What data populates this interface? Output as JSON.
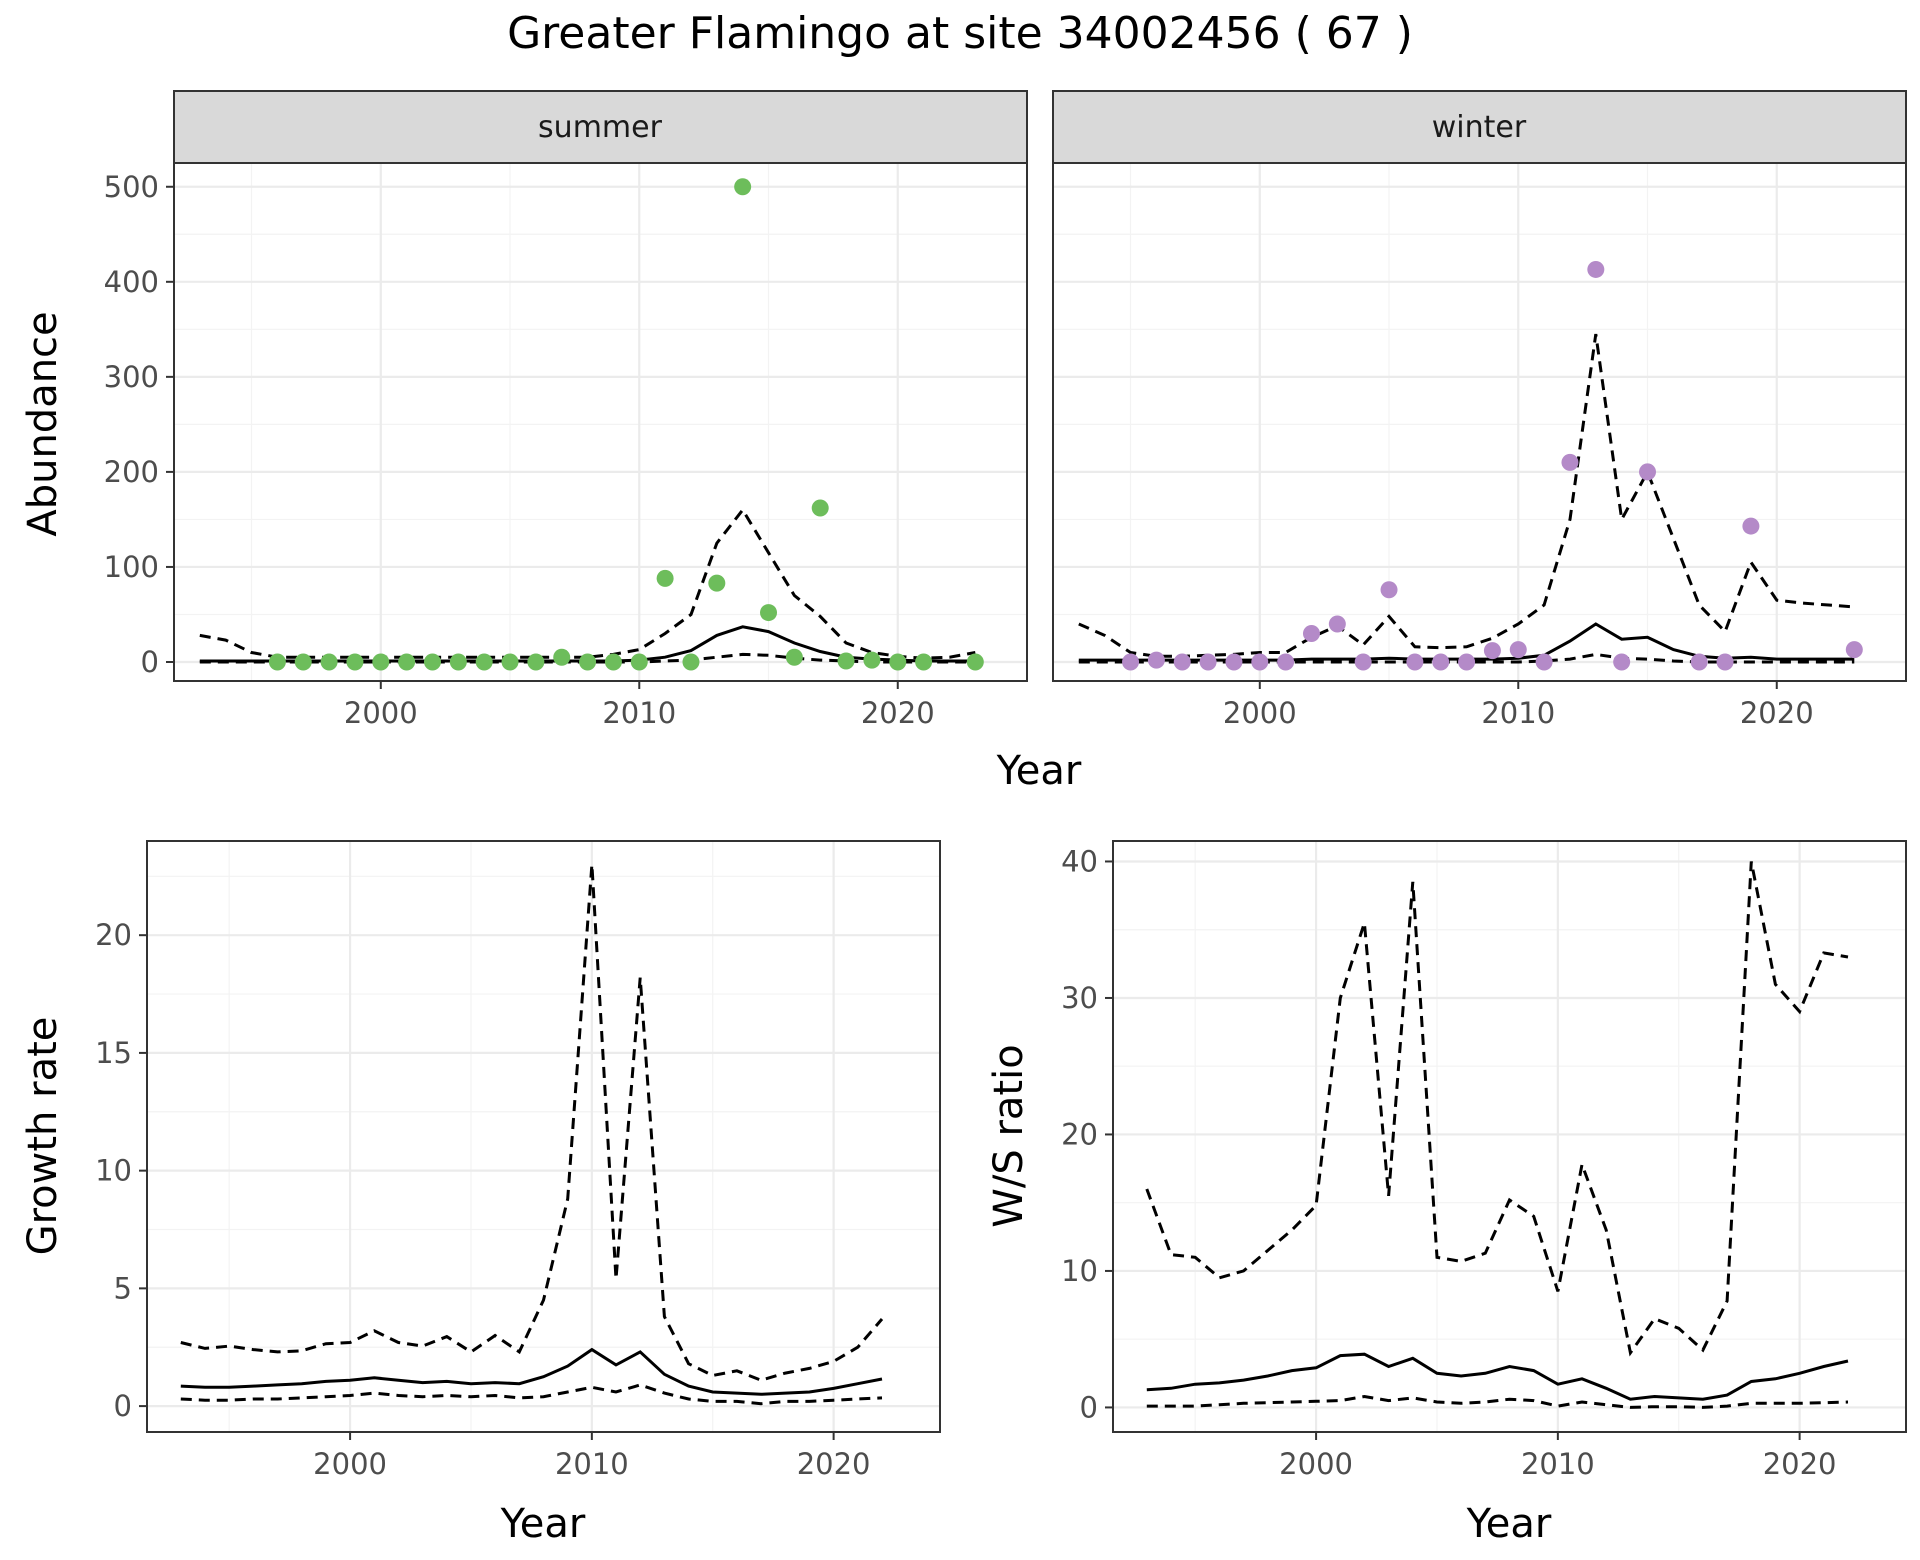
{
  "title": "Greater Flamingo at site 34002456 ( 67 )",
  "colors": {
    "summer_points": "#6dbd5b",
    "winter_points": "#b48ac8",
    "lines": "#000000"
  },
  "chart_data": [
    {
      "type": "line",
      "facet": "summer",
      "xlabel": "Year",
      "ylabel": "Abundance",
      "xlim": [
        1992,
        2025
      ],
      "ylim": [
        -20,
        525
      ],
      "xticks": [
        2000,
        2010,
        2020
      ],
      "yticks": [
        0,
        100,
        200,
        300,
        400,
        500
      ],
      "grid": true,
      "points": {
        "x": [
          1996,
          1997,
          1998,
          1999,
          2000,
          2001,
          2002,
          2003,
          2004,
          2005,
          2006,
          2007,
          2008,
          2009,
          2010,
          2011,
          2012,
          2013,
          2014,
          2015,
          2016,
          2017,
          2018,
          2019,
          2020,
          2021,
          2023
        ],
        "y": [
          0,
          0,
          0,
          0,
          0,
          0,
          0,
          0,
          0,
          0,
          0,
          5,
          0,
          0,
          0,
          88,
          0,
          83,
          500,
          52,
          5,
          162,
          1,
          2,
          0,
          0,
          0
        ]
      },
      "series": [
        {
          "style": "solid",
          "x": [
            1993,
            1994,
            1995,
            1996,
            1997,
            1998,
            1999,
            2000,
            2001,
            2002,
            2003,
            2004,
            2005,
            2006,
            2007,
            2008,
            2009,
            2010,
            2011,
            2012,
            2013,
            2014,
            2015,
            2016,
            2017,
            2018,
            2019,
            2020,
            2021,
            2022,
            2023
          ],
          "values": [
            1,
            1,
            1,
            1,
            1,
            1,
            1,
            1,
            1,
            1,
            1,
            1,
            1,
            1,
            1,
            1,
            1,
            2,
            5,
            12,
            28,
            37,
            32,
            20,
            11,
            5,
            3,
            2,
            1,
            1,
            1
          ]
        },
        {
          "style": "dashed",
          "x": [
            1993,
            1994,
            1995,
            1996,
            1997,
            1998,
            1999,
            2000,
            2001,
            2002,
            2003,
            2004,
            2005,
            2006,
            2007,
            2008,
            2009,
            2010,
            2011,
            2012,
            2013,
            2014,
            2015,
            2016,
            2017,
            2018,
            2019,
            2020,
            2021,
            2022,
            2023
          ],
          "values": [
            28,
            23,
            10,
            5,
            5,
            5,
            5,
            5,
            5,
            5,
            5,
            5,
            5,
            5,
            5,
            5,
            8,
            13,
            30,
            50,
            125,
            160,
            115,
            70,
            48,
            20,
            10,
            6,
            4,
            5,
            10
          ]
        },
        {
          "style": "dashed",
          "x": [
            1993,
            1995,
            2000,
            2005,
            2008,
            2010,
            2011,
            2012,
            2013,
            2014,
            2015,
            2016,
            2017,
            2018,
            2019,
            2020,
            2021,
            2022,
            2023
          ],
          "values": [
            0,
            0,
            0,
            0,
            0,
            0,
            1,
            2,
            5,
            8,
            7,
            4,
            2,
            1,
            0,
            0,
            0,
            0,
            0
          ]
        }
      ]
    },
    {
      "type": "line",
      "facet": "winter",
      "xlabel": "Year",
      "ylabel": "Abundance",
      "xlim": [
        1992,
        2025
      ],
      "ylim": [
        -20,
        525
      ],
      "xticks": [
        2000,
        2010,
        2020
      ],
      "yticks": [
        0,
        100,
        200,
        300,
        400,
        500
      ],
      "grid": true,
      "points": {
        "x": [
          1995,
          1996,
          1997,
          1998,
          1999,
          2000,
          2001,
          2002,
          2003,
          2004,
          2005,
          2006,
          2007,
          2008,
          2009,
          2010,
          2011,
          2012,
          2013,
          2014,
          2015,
          2017,
          2018,
          2019,
          2023
        ],
        "y": [
          0,
          2,
          0,
          0,
          0,
          0,
          0,
          30,
          40,
          0,
          76,
          0,
          0,
          0,
          12,
          13,
          0,
          210,
          413,
          0,
          200,
          0,
          0,
          143,
          13
        ]
      },
      "series": [
        {
          "style": "solid",
          "x": [
            1993,
            1994,
            1995,
            1996,
            1997,
            1998,
            1999,
            2000,
            2001,
            2002,
            2003,
            2004,
            2005,
            2006,
            2007,
            2008,
            2009,
            2010,
            2011,
            2012,
            2013,
            2014,
            2015,
            2016,
            2017,
            2018,
            2019,
            2020,
            2021,
            2022,
            2023
          ],
          "values": [
            2,
            2,
            2,
            2,
            2,
            2,
            2,
            2,
            2,
            3,
            3,
            3,
            4,
            3,
            3,
            3,
            3,
            4,
            7,
            22,
            40,
            24,
            26,
            13,
            6,
            4,
            5,
            3,
            3,
            3,
            3
          ]
        },
        {
          "style": "dashed",
          "x": [
            1993,
            1994,
            1995,
            1996,
            1997,
            1998,
            1999,
            2000,
            2001,
            2002,
            2003,
            2004,
            2005,
            2006,
            2007,
            2008,
            2009,
            2010,
            2011,
            2012,
            2013,
            2014,
            2015,
            2016,
            2017,
            2018,
            2019,
            2020,
            2021,
            2022,
            2023
          ],
          "values": [
            40,
            28,
            10,
            6,
            6,
            7,
            8,
            10,
            10,
            26,
            38,
            18,
            48,
            16,
            15,
            16,
            25,
            40,
            60,
            150,
            345,
            150,
            200,
            130,
            60,
            32,
            105,
            65,
            62,
            60,
            58
          ]
        },
        {
          "style": "dashed",
          "x": [
            1993,
            1995,
            2000,
            2005,
            2008,
            2010,
            2011,
            2012,
            2013,
            2014,
            2015,
            2016,
            2017,
            2018,
            2019,
            2020,
            2021,
            2022,
            2023
          ],
          "values": [
            0,
            0,
            0,
            0,
            0,
            0,
            1,
            3,
            8,
            4,
            3,
            1,
            0,
            0,
            0,
            0,
            0,
            0,
            0
          ]
        }
      ]
    },
    {
      "type": "line",
      "xlabel": "Year",
      "ylabel": "Growth rate",
      "xlim": [
        1991.6,
        2024.4
      ],
      "ylim": [
        -1.1,
        24.0
      ],
      "xticks": [
        2000,
        2010,
        2020
      ],
      "yticks": [
        0,
        5,
        10,
        15,
        20
      ],
      "grid": true,
      "series": [
        {
          "style": "solid",
          "x": [
            1993,
            1994,
            1995,
            1996,
            1997,
            1998,
            1999,
            2000,
            2001,
            2002,
            2003,
            2004,
            2005,
            2006,
            2007,
            2008,
            2009,
            2010,
            2011,
            2012,
            2013,
            2014,
            2015,
            2016,
            2017,
            2018,
            2019,
            2020,
            2021,
            2022
          ],
          "values": [
            0.85,
            0.8,
            0.8,
            0.85,
            0.9,
            0.95,
            1.05,
            1.1,
            1.2,
            1.1,
            1.0,
            1.05,
            0.95,
            1.0,
            0.95,
            1.25,
            1.7,
            2.4,
            1.75,
            2.3,
            1.35,
            0.85,
            0.6,
            0.55,
            0.5,
            0.55,
            0.6,
            0.75,
            0.95,
            1.15
          ]
        },
        {
          "style": "dashed",
          "x": [
            1993,
            1994,
            1995,
            1996,
            1997,
            1998,
            1999,
            2000,
            2001,
            2002,
            2003,
            2004,
            2005,
            2006,
            2007,
            2008,
            2009,
            2010,
            2011,
            2012,
            2013,
            2014,
            2015,
            2016,
            2017,
            2018,
            2019,
            2020,
            2021,
            2022
          ],
          "values": [
            2.7,
            2.45,
            2.55,
            2.4,
            2.3,
            2.35,
            2.65,
            2.7,
            3.2,
            2.7,
            2.55,
            2.95,
            2.3,
            3.0,
            2.3,
            4.5,
            8.8,
            23.0,
            5.4,
            18.2,
            3.8,
            1.8,
            1.3,
            1.5,
            1.1,
            1.4,
            1.6,
            1.9,
            2.5,
            3.7
          ]
        },
        {
          "style": "dashed",
          "x": [
            1993,
            1994,
            1995,
            1996,
            1997,
            1998,
            1999,
            2000,
            2001,
            2002,
            2003,
            2004,
            2005,
            2006,
            2007,
            2008,
            2009,
            2010,
            2011,
            2012,
            2013,
            2014,
            2015,
            2016,
            2017,
            2018,
            2019,
            2020,
            2021,
            2022
          ],
          "values": [
            0.3,
            0.25,
            0.25,
            0.3,
            0.3,
            0.35,
            0.4,
            0.45,
            0.55,
            0.45,
            0.4,
            0.45,
            0.4,
            0.45,
            0.35,
            0.4,
            0.6,
            0.8,
            0.6,
            0.9,
            0.55,
            0.3,
            0.2,
            0.2,
            0.1,
            0.2,
            0.2,
            0.25,
            0.3,
            0.35
          ]
        }
      ]
    },
    {
      "type": "line",
      "xlabel": "Year",
      "ylabel": "W/S ratio",
      "xlim": [
        1991.6,
        2024.4
      ],
      "ylim": [
        -1.8,
        41.5
      ],
      "xticks": [
        2000,
        2010,
        2020
      ],
      "yticks": [
        0,
        10,
        20,
        30,
        40
      ],
      "grid": true,
      "series": [
        {
          "style": "solid",
          "x": [
            1993,
            1994,
            1995,
            1996,
            1997,
            1998,
            1999,
            2000,
            2001,
            2002,
            2003,
            2004,
            2005,
            2006,
            2007,
            2008,
            2009,
            2010,
            2011,
            2012,
            2013,
            2014,
            2015,
            2016,
            2017,
            2018,
            2019,
            2020,
            2021,
            2022
          ],
          "values": [
            1.3,
            1.4,
            1.7,
            1.8,
            2.0,
            2.3,
            2.7,
            2.9,
            3.8,
            3.9,
            3.0,
            3.6,
            2.5,
            2.3,
            2.5,
            3.0,
            2.7,
            1.7,
            2.1,
            1.4,
            0.6,
            0.8,
            0.7,
            0.6,
            0.9,
            1.9,
            2.1,
            2.5,
            3.0,
            3.4
          ]
        },
        {
          "style": "dashed",
          "x": [
            1993,
            1994,
            1995,
            1996,
            1997,
            1998,
            1999,
            2000,
            2001,
            2002,
            2003,
            2004,
            2005,
            2006,
            2007,
            2008,
            2009,
            2010,
            2011,
            2012,
            2013,
            2014,
            2015,
            2016,
            2017,
            2018,
            2019,
            2020,
            2021,
            2022
          ],
          "values": [
            16.0,
            11.2,
            11.0,
            9.5,
            10.0,
            11.5,
            13.0,
            14.8,
            30.0,
            35.5,
            15.5,
            38.5,
            11.0,
            10.7,
            11.3,
            15.2,
            14.0,
            8.5,
            17.8,
            13.0,
            4.0,
            6.5,
            5.8,
            4.2,
            7.8,
            40.0,
            31.0,
            29.0,
            33.3,
            33.0
          ]
        },
        {
          "style": "dashed",
          "x": [
            1993,
            1994,
            1995,
            1996,
            1997,
            1998,
            1999,
            2000,
            2001,
            2002,
            2003,
            2004,
            2005,
            2006,
            2007,
            2008,
            2009,
            2010,
            2011,
            2012,
            2013,
            2014,
            2015,
            2016,
            2017,
            2018,
            2019,
            2020,
            2021,
            2022
          ],
          "values": [
            0.1,
            0.1,
            0.1,
            0.2,
            0.3,
            0.35,
            0.4,
            0.45,
            0.5,
            0.8,
            0.5,
            0.7,
            0.4,
            0.3,
            0.4,
            0.6,
            0.5,
            0.1,
            0.4,
            0.2,
            0.0,
            0.05,
            0.05,
            0.0,
            0.1,
            0.3,
            0.3,
            0.3,
            0.35,
            0.4
          ]
        }
      ]
    }
  ]
}
